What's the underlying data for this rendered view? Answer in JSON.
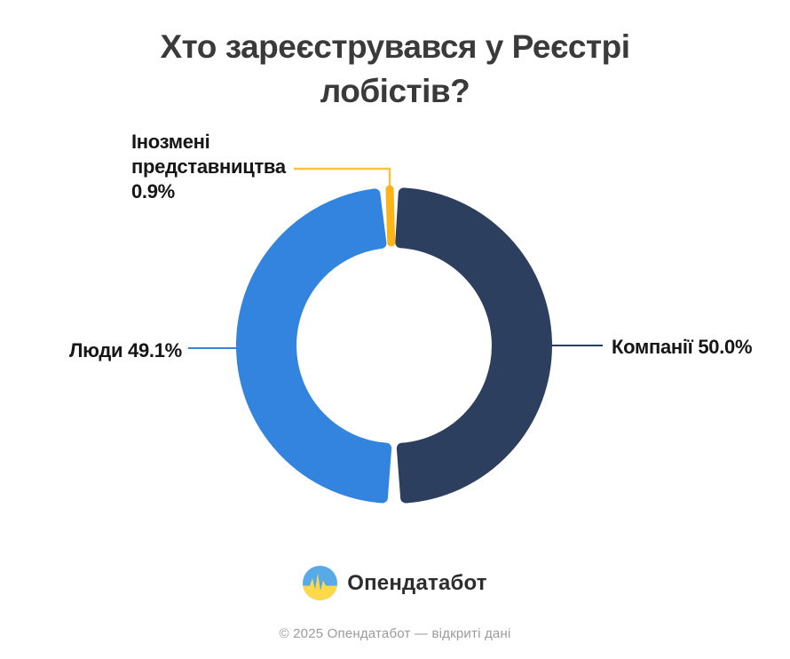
{
  "title": {
    "lines": [
      "Хто зареєструвався у Реєстрі",
      "лобістів?"
    ]
  },
  "chart_data": {
    "type": "pie",
    "subtype": "donut",
    "title": "Хто зареєструвався у Реєстрі лобістів?",
    "units": "%",
    "total": 100,
    "start_angle_deg": 0,
    "direction": "clockwise",
    "legend": "none",
    "slices": [
      {
        "id": "companies",
        "label": "Компанії",
        "value": 50.0,
        "display": "Компанії 50.0%",
        "color": "#2D3F5F",
        "label_side": "right"
      },
      {
        "id": "people",
        "label": "Люди",
        "value": 49.1,
        "display": "Люди 49.1%",
        "color": "#3384DE",
        "label_side": "left"
      },
      {
        "id": "foreign",
        "label": "Інозмені представництва",
        "value": 0.9,
        "display": "Інозмені представництва 0.9%",
        "display_lines": [
          "Інозмені",
          "представництва",
          "0.9%"
        ],
        "color": "#FDB414",
        "label_side": "top-left"
      }
    ],
    "colors": {
      "leader_yellow": "#F6C444",
      "title_text": "#3A3A3A",
      "label_text": "#161616"
    }
  },
  "logo": {
    "text": "Опендатабот",
    "icon": "opendatabot-pulse-circle",
    "icon_colors": {
      "blue": "#58A9E7",
      "yellow": "#FFD94A"
    }
  },
  "footer": {
    "text": "© 2025 Опендатабот — відкриті дані"
  }
}
